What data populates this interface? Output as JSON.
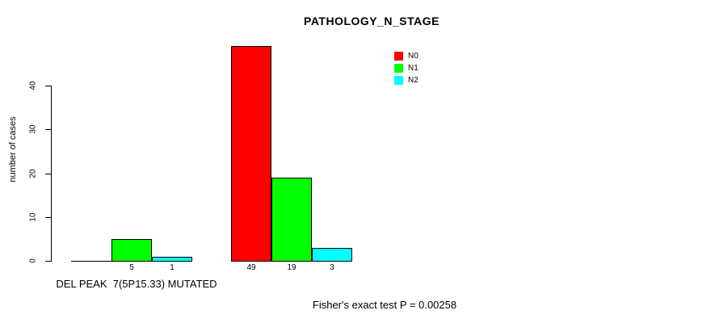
{
  "title": "PATHOLOGY_N_STAGE",
  "y_axis": {
    "label": "number of cases",
    "ticks": [
      0,
      10,
      20,
      30,
      40
    ]
  },
  "x_axis": {
    "group_label": "DEL PEAK  7(5P15.33) MUTATED"
  },
  "legend": {
    "items": [
      {
        "label": "N0",
        "color": "#FF0000"
      },
      {
        "label": "N1",
        "color": "#00FF00"
      },
      {
        "label": "N2",
        "color": "#00FFFF"
      }
    ]
  },
  "footer": {
    "caption": "Fisher's exact test P = 0.00258"
  },
  "chart_data": {
    "type": "bar",
    "title": "PATHOLOGY_N_STAGE",
    "xlabel": "",
    "ylabel": "number of cases",
    "ylim": [
      0,
      40
    ],
    "grid": false,
    "legend_position": "top-right",
    "categories": [
      "DEL PEAK  7(5P15.33) MUTATED",
      ""
    ],
    "series": [
      {
        "name": "N0",
        "color": "#FF0000",
        "values": [
          0,
          49
        ]
      },
      {
        "name": "N1",
        "color": "#00FF00",
        "values": [
          5,
          19
        ]
      },
      {
        "name": "N2",
        "color": "#00FFFF",
        "values": [
          1,
          3
        ]
      }
    ],
    "bar_labels": [
      [
        "",
        "5",
        "1"
      ],
      [
        "49",
        "19",
        "3"
      ]
    ],
    "annotation": "Fisher's exact test P = 0.00258"
  }
}
